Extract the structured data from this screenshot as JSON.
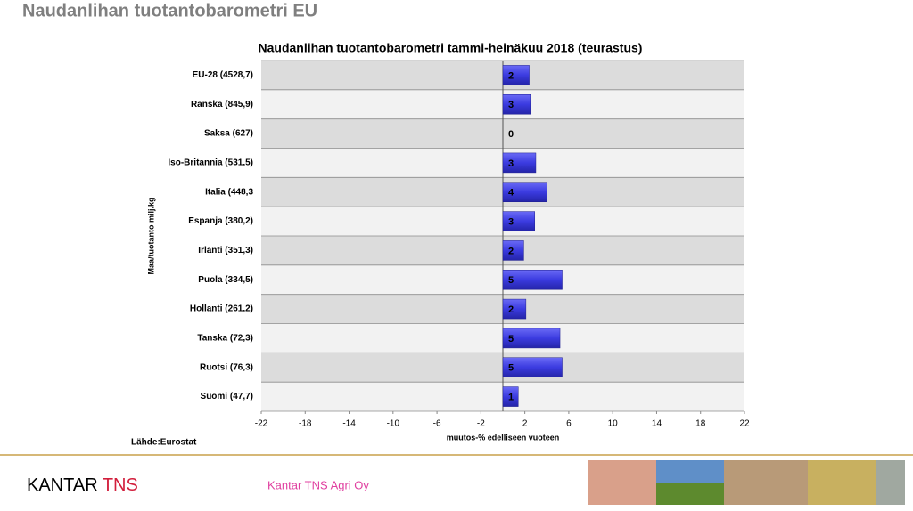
{
  "header": {
    "title": "Naudanlihan tuotantobarometri EU"
  },
  "chart_data": {
    "type": "hbar",
    "title": "Naudanlihan tuotantobarometri tammi-heinäkuu 2018 (teurastus)",
    "x_label": "muutos-% edelliseen vuoteen",
    "y_label": "Maa/tuotanto milj.kg",
    "categories": [
      "EU-28 (4528,7)",
      "Ranska (845,9)",
      "Saksa (627)",
      "Iso-Britannia (531,5)",
      "Italia (448,3",
      "Espanja (380,2)",
      "Irlanti (351,3)",
      "Puola (334,5)",
      "Hollanti (261,2)",
      "Tanska (72,3)",
      "Ruotsi (76,3)",
      "Suomi (47,7)"
    ],
    "values": [
      2.4,
      2.5,
      0,
      3.0,
      4.0,
      2.9,
      1.9,
      5.4,
      2.1,
      5.2,
      5.4,
      1.4
    ],
    "value_labels": [
      "2",
      "3",
      "0",
      "3",
      "4",
      "3",
      "2",
      "5",
      "2",
      "5",
      "5",
      "1"
    ],
    "color": "#3b3be0",
    "xlim": [
      -22,
      22
    ],
    "xticks": [
      -22,
      -18,
      -14,
      -10,
      -6,
      -2,
      2,
      6,
      10,
      14,
      18,
      22
    ]
  },
  "source": "Lähde:Eurostat",
  "footer": {
    "brand": "KANTAR",
    "product": "TNS",
    "company": "Kantar TNS Agri Oy"
  }
}
